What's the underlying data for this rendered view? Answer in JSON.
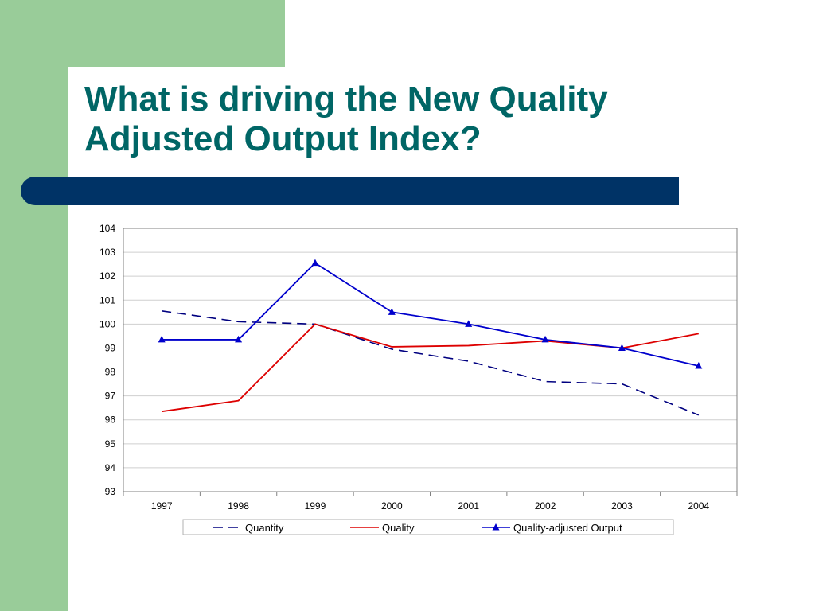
{
  "slide": {
    "title_line1": "What is driving the New Quality",
    "title_line2": "Adjusted Output Index?",
    "colors": {
      "green": "#99cc99",
      "title": "#006666",
      "bar": "#003366"
    }
  },
  "chart_data": {
    "type": "line",
    "title": "",
    "xlabel": "",
    "ylabel": "",
    "categories": [
      "1997",
      "1998",
      "1999",
      "2000",
      "2001",
      "2002",
      "2003",
      "2004"
    ],
    "ylim": [
      93,
      104
    ],
    "yticks": [
      "93",
      "94",
      "95",
      "96",
      "97",
      "98",
      "99",
      "100",
      "101",
      "102",
      "103",
      "104"
    ],
    "grid": true,
    "legend_position": "bottom",
    "series": [
      {
        "name": "Quantity",
        "color": "#000080",
        "style": "dashed",
        "marker": "none",
        "values": [
          100.55,
          100.1,
          100.0,
          98.95,
          98.45,
          97.6,
          97.5,
          96.2
        ]
      },
      {
        "name": "Quality",
        "color": "#dd0000",
        "style": "solid",
        "marker": "none",
        "values": [
          96.35,
          96.8,
          100.0,
          99.05,
          99.1,
          99.3,
          99.0,
          99.6
        ]
      },
      {
        "name": "Quality-adjusted Output",
        "color": "#0000cc",
        "style": "solid",
        "marker": "triangle",
        "values": [
          99.35,
          99.35,
          102.55,
          100.5,
          100.0,
          99.35,
          99.0,
          98.25
        ]
      }
    ]
  }
}
